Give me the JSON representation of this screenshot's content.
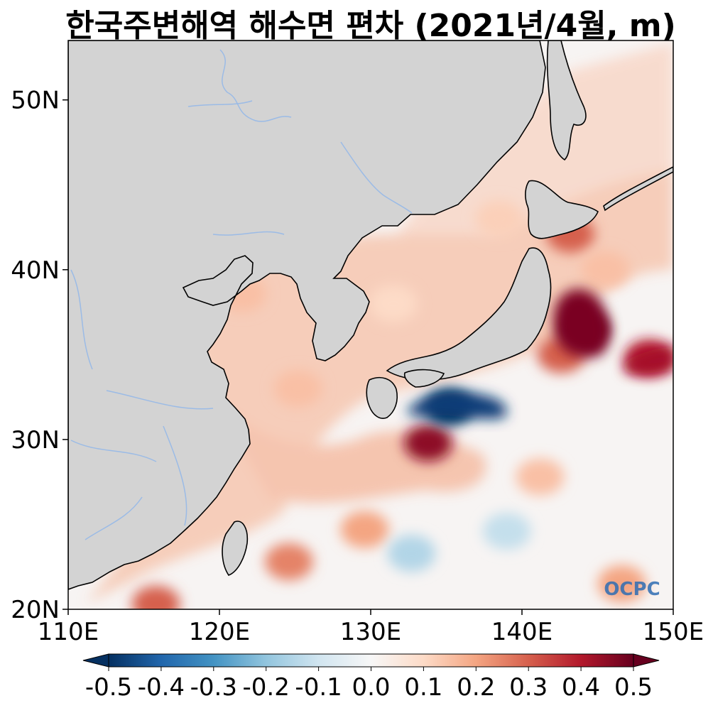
{
  "title": "한국주변해역 해수면 편차 (2021년/4월, m)",
  "map": {
    "lon_range": [
      110,
      150
    ],
    "lat_range": [
      20,
      53.5
    ],
    "land_color": "#d3d3d3",
    "coast_color": "#000000",
    "river_color": "#9bbbe6",
    "lon_ticks": [
      {
        "value": 110,
        "label": "110E"
      },
      {
        "value": 120,
        "label": "120E"
      },
      {
        "value": 130,
        "label": "130E"
      },
      {
        "value": 140,
        "label": "140E"
      },
      {
        "value": 150,
        "label": "150E"
      }
    ],
    "lat_ticks": [
      {
        "value": 20,
        "label": "20N"
      },
      {
        "value": 30,
        "label": "30N"
      },
      {
        "value": 40,
        "label": "40N"
      },
      {
        "value": 50,
        "label": "50N"
      }
    ],
    "anomaly_features": [
      {
        "lon": 144.2,
        "lat": 36.5,
        "value": 0.55
      },
      {
        "lon": 142.6,
        "lat": 35.0,
        "value": 0.3
      },
      {
        "lon": 133.8,
        "lat": 29.8,
        "value": 0.45
      },
      {
        "lon": 135.2,
        "lat": 31.9,
        "value": -0.55
      },
      {
        "lon": 148.4,
        "lat": 34.8,
        "value": 0.4
      },
      {
        "lon": 143.2,
        "lat": 42.1,
        "value": 0.3
      },
      {
        "lon": 145.5,
        "lat": 40.0,
        "value": 0.15
      },
      {
        "lon": 124.6,
        "lat": 22.8,
        "value": 0.25
      },
      {
        "lon": 115.8,
        "lat": 20.3,
        "value": 0.3
      },
      {
        "lon": 129.6,
        "lat": 24.7,
        "value": 0.2
      },
      {
        "lon": 132.7,
        "lat": 23.3,
        "value": -0.15
      },
      {
        "lon": 139.0,
        "lat": 24.6,
        "value": -0.12
      },
      {
        "lon": 146.6,
        "lat": 21.5,
        "value": 0.2
      },
      {
        "lon": 141.2,
        "lat": 27.8,
        "value": 0.15
      },
      {
        "lon": 121.5,
        "lat": 38.6,
        "value": 0.15
      },
      {
        "lon": 125.2,
        "lat": 33.0,
        "value": 0.15
      },
      {
        "lon": 131.5,
        "lat": 38.0,
        "value": 0.1
      },
      {
        "lon": 138.5,
        "lat": 43.0,
        "value": 0.12
      }
    ]
  },
  "colorbar": {
    "min": -0.5,
    "max": 0.5,
    "colors": [
      "#053061",
      "#2166ac",
      "#4393c3",
      "#92c5de",
      "#d1e5f0",
      "#f7f7f7",
      "#fddbc7",
      "#f4a582",
      "#d6604d",
      "#b2182b",
      "#67001f"
    ],
    "ticks": [
      {
        "value": -0.5,
        "label": "-0.5"
      },
      {
        "value": -0.4,
        "label": "-0.4"
      },
      {
        "value": -0.3,
        "label": "-0.3"
      },
      {
        "value": -0.2,
        "label": "-0.2"
      },
      {
        "value": -0.1,
        "label": "-0.1"
      },
      {
        "value": 0.0,
        "label": "0.0"
      },
      {
        "value": 0.1,
        "label": "0.1"
      },
      {
        "value": 0.2,
        "label": "0.2"
      },
      {
        "value": 0.3,
        "label": "0.3"
      },
      {
        "value": 0.4,
        "label": "0.4"
      },
      {
        "value": 0.5,
        "label": "0.5"
      }
    ]
  },
  "logo": {
    "text": "OCPC"
  }
}
